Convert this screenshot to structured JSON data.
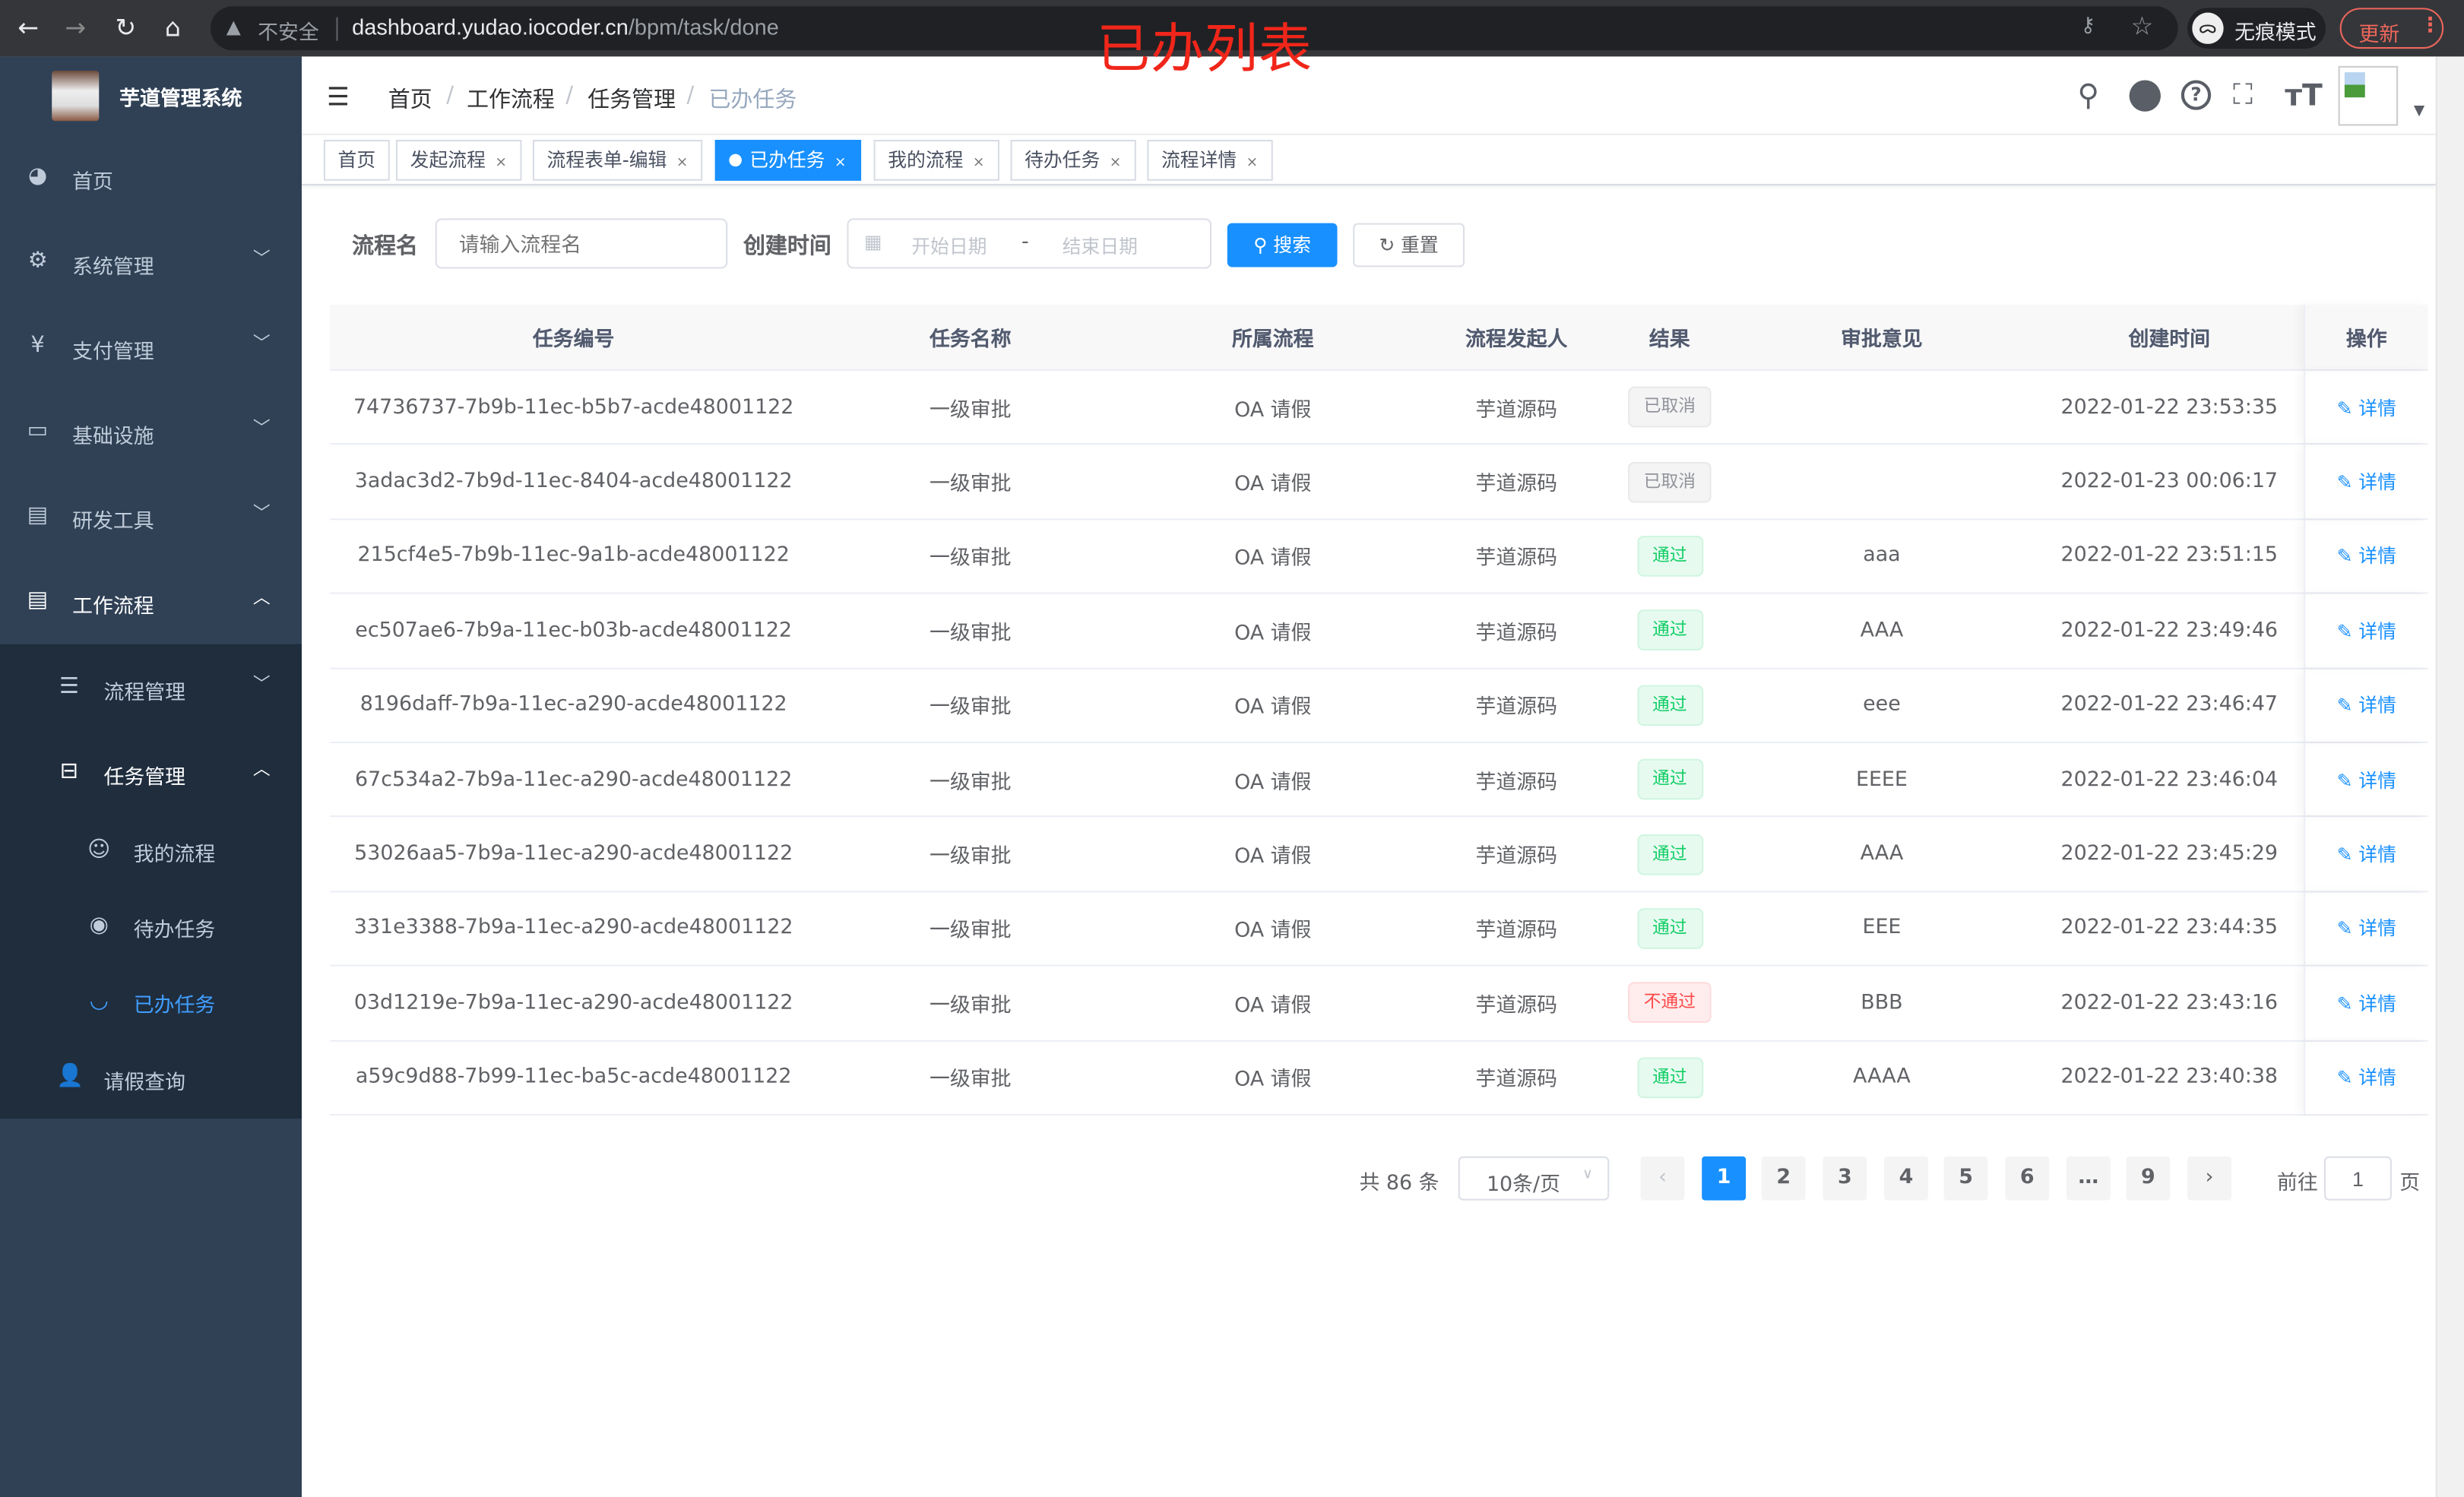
{
  "browser": {
    "security": "不安全",
    "url_host": "dashboard.yudao.iocoder.cn",
    "url_path": "/bpm/task/done",
    "incognito": "无痕模式",
    "update": "更新"
  },
  "annotation": "已办列表",
  "sidebar": {
    "title": "芋道管理系统",
    "items": [
      {
        "label": "首页",
        "icon": "dashboard-icon"
      },
      {
        "label": "系统管理",
        "icon": "gear-icon"
      },
      {
        "label": "支付管理",
        "icon": "yen-icon"
      },
      {
        "label": "基础设施",
        "icon": "monitor-icon"
      },
      {
        "label": "研发工具",
        "icon": "toolbox-icon"
      },
      {
        "label": "工作流程",
        "icon": "toolbox-icon"
      }
    ],
    "sub": [
      {
        "label": "流程管理"
      },
      {
        "label": "任务管理"
      }
    ],
    "sub2": [
      {
        "label": "我的流程"
      },
      {
        "label": "待办任务"
      },
      {
        "label": "已办任务"
      }
    ],
    "leave": "请假查询"
  },
  "breadcrumb": [
    "首页",
    "工作流程",
    "任务管理",
    "已办任务"
  ],
  "tags": [
    "首页",
    "发起流程",
    "流程表单-编辑",
    "已办任务",
    "我的流程",
    "待办任务",
    "流程详情"
  ],
  "filter": {
    "name_label": "流程名",
    "name_placeholder": "请输入流程名",
    "time_label": "创建时间",
    "start_placeholder": "开始日期",
    "range_sep": "-",
    "end_placeholder": "结束日期",
    "search": "搜索",
    "reset": "重置"
  },
  "table": {
    "headers": [
      "任务编号",
      "任务名称",
      "所属流程",
      "流程发起人",
      "结果",
      "审批意见",
      "创建时间",
      "操作"
    ],
    "rows": [
      [
        "74736737-7b9b-11ec-b5b7-acde48001122",
        "一级审批",
        "OA 请假",
        "芋道源码",
        "已取消",
        "",
        "2022-01-22 23:53:35",
        "详情"
      ],
      [
        "3adac3d2-7b9d-11ec-8404-acde48001122",
        "一级审批",
        "OA 请假",
        "芋道源码",
        "已取消",
        "",
        "2022-01-23 00:06:17",
        "详情"
      ],
      [
        "215cf4e5-7b9b-11ec-9a1b-acde48001122",
        "一级审批",
        "OA 请假",
        "芋道源码",
        "通过",
        "aaa",
        "2022-01-22 23:51:15",
        "详情"
      ],
      [
        "ec507ae6-7b9a-11ec-b03b-acde48001122",
        "一级审批",
        "OA 请假",
        "芋道源码",
        "通过",
        "AAA",
        "2022-01-22 23:49:46",
        "详情"
      ],
      [
        "8196daff-7b9a-11ec-a290-acde48001122",
        "一级审批",
        "OA 请假",
        "芋道源码",
        "通过",
        "eee",
        "2022-01-22 23:46:47",
        "详情"
      ],
      [
        "67c534a2-7b9a-11ec-a290-acde48001122",
        "一级审批",
        "OA 请假",
        "芋道源码",
        "通过",
        "EEEE",
        "2022-01-22 23:46:04",
        "详情"
      ],
      [
        "53026aa5-7b9a-11ec-a290-acde48001122",
        "一级审批",
        "OA 请假",
        "芋道源码",
        "通过",
        "AAA",
        "2022-01-22 23:45:29",
        "详情"
      ],
      [
        "331e3388-7b9a-11ec-a290-acde48001122",
        "一级审批",
        "OA 请假",
        "芋道源码",
        "通过",
        "EEE",
        "2022-01-22 23:44:35",
        "详情"
      ],
      [
        "03d1219e-7b9a-11ec-a290-acde48001122",
        "一级审批",
        "OA 请假",
        "芋道源码",
        "不通过",
        "BBB",
        "2022-01-22 23:43:16",
        "详情"
      ],
      [
        "a59c9d88-7b99-11ec-ba5c-acde48001122",
        "一级审批",
        "OA 请假",
        "芋道源码",
        "通过",
        "AAAA",
        "2022-01-22 23:40:38",
        "详情"
      ]
    ]
  },
  "pagination": {
    "total": "共 86 条",
    "page_size": "10条/页",
    "pages": [
      "1",
      "2",
      "3",
      "4",
      "5",
      "6",
      "…",
      "9"
    ],
    "current": "1",
    "goto_label": "前往",
    "goto_value": "1",
    "goto_suffix": "页"
  },
  "colors": {
    "primary": "#1890ff",
    "sidebar": "#304156",
    "success": "#13ce66",
    "danger": "#ff4949"
  }
}
